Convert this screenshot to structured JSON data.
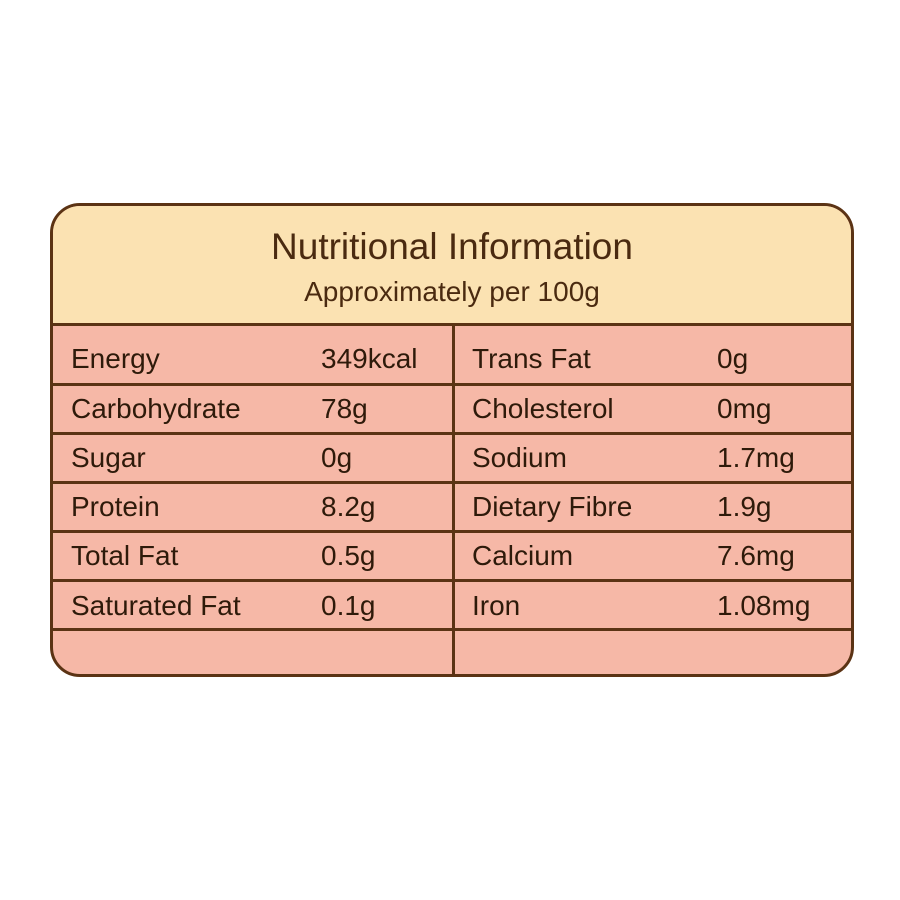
{
  "title": "Nutritional Information",
  "subtitle": "Approximately per 100g",
  "left": [
    {
      "name": "Energy",
      "value": "349kcal"
    },
    {
      "name": "Carbohydrate",
      "value": "78g"
    },
    {
      "name": "Sugar",
      "value": "0g"
    },
    {
      "name": "Protein",
      "value": "8.2g"
    },
    {
      "name": "Total Fat",
      "value": "0.5g"
    },
    {
      "name": "Saturated Fat",
      "value": "0.1g"
    }
  ],
  "right": [
    {
      "name": "Trans Fat",
      "value": "0g"
    },
    {
      "name": "Cholesterol",
      "value": "0mg"
    },
    {
      "name": "Sodium",
      "value": "1.7mg"
    },
    {
      "name": "Dietary Fibre",
      "value": "1.9g"
    },
    {
      "name": "Calcium",
      "value": "7.6mg"
    },
    {
      "name": "Iron",
      "value": "1.08mg"
    }
  ],
  "colors": {
    "header": "#fbe2b2",
    "body": "#f6b8a7",
    "border": "#5b3314"
  }
}
